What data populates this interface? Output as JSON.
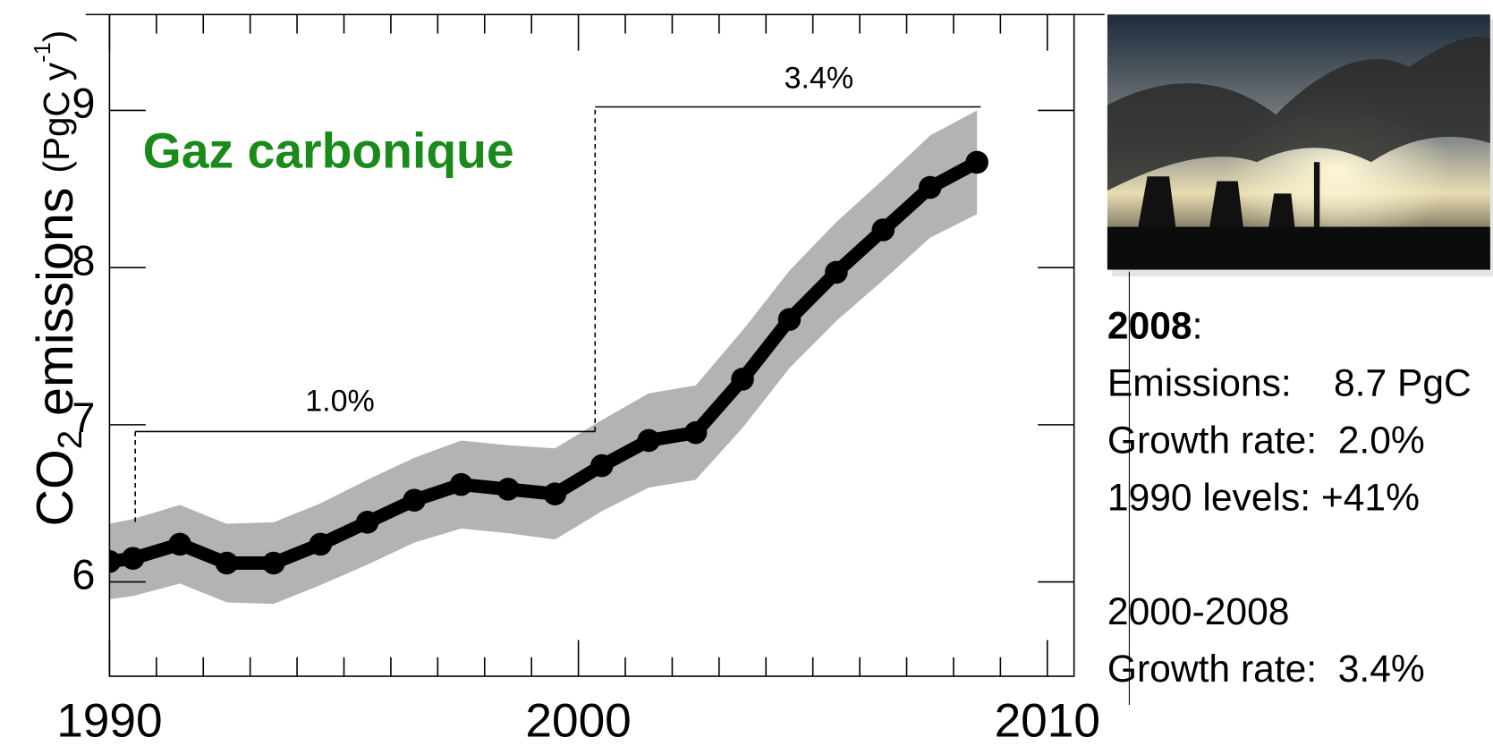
{
  "chart_data": {
    "type": "line",
    "title": "Gaz carbonique",
    "ylabel_parts": [
      "CO",
      "2",
      " emissions ",
      "(PgC y",
      "-1",
      ")"
    ],
    "x": [
      1990,
      1990.5,
      1991.5,
      1992.5,
      1993.5,
      1994.5,
      1995.5,
      1996.5,
      1997.5,
      1998.5,
      1999.5,
      2000.5,
      2001.5,
      2002.5,
      2003.5,
      2004.5,
      2005.5,
      2006.5,
      2007.5,
      2008.5
    ],
    "values": [
      6.13,
      6.15,
      6.24,
      6.12,
      6.12,
      6.24,
      6.38,
      6.52,
      6.62,
      6.59,
      6.56,
      6.74,
      6.9,
      6.95,
      7.29,
      7.67,
      7.97,
      8.24,
      8.51,
      8.67
    ],
    "color": "#000000",
    "band": {
      "lower": [
        5.89,
        5.91,
        5.99,
        5.87,
        5.86,
        5.98,
        6.11,
        6.25,
        6.34,
        6.31,
        6.27,
        6.45,
        6.6,
        6.65,
        6.98,
        7.36,
        7.66,
        7.92,
        8.19,
        8.34
      ],
      "upper": [
        6.37,
        6.4,
        6.49,
        6.37,
        6.38,
        6.5,
        6.65,
        6.79,
        6.9,
        6.87,
        6.85,
        7.03,
        7.2,
        7.25,
        7.6,
        7.98,
        8.29,
        8.56,
        8.84,
        9.0
      ],
      "color": "#b3b3b3"
    },
    "xlim": [
      1990,
      2010.57
    ],
    "ylim": [
      5.4,
      9.61
    ],
    "xticks": [
      1990,
      2000,
      2010
    ],
    "xticks_minor": [
      1991,
      1992,
      1993,
      1994,
      1995,
      1996,
      1997,
      1998,
      1999,
      2001,
      2002,
      2003,
      2004,
      2005,
      2006,
      2007,
      2008,
      2009
    ],
    "yticks": [
      6,
      7,
      8,
      9
    ],
    "annotations": [
      "1.0%",
      "3.4%"
    ]
  },
  "side_panel": {
    "year": "2008",
    "colon": ":",
    "lines": [
      "Emissions:    8.7 PgC",
      "Growth rate:  2.0%",
      "1990 levels: +41%",
      "2000-2008",
      "Growth rate:  3.4%"
    ]
  }
}
